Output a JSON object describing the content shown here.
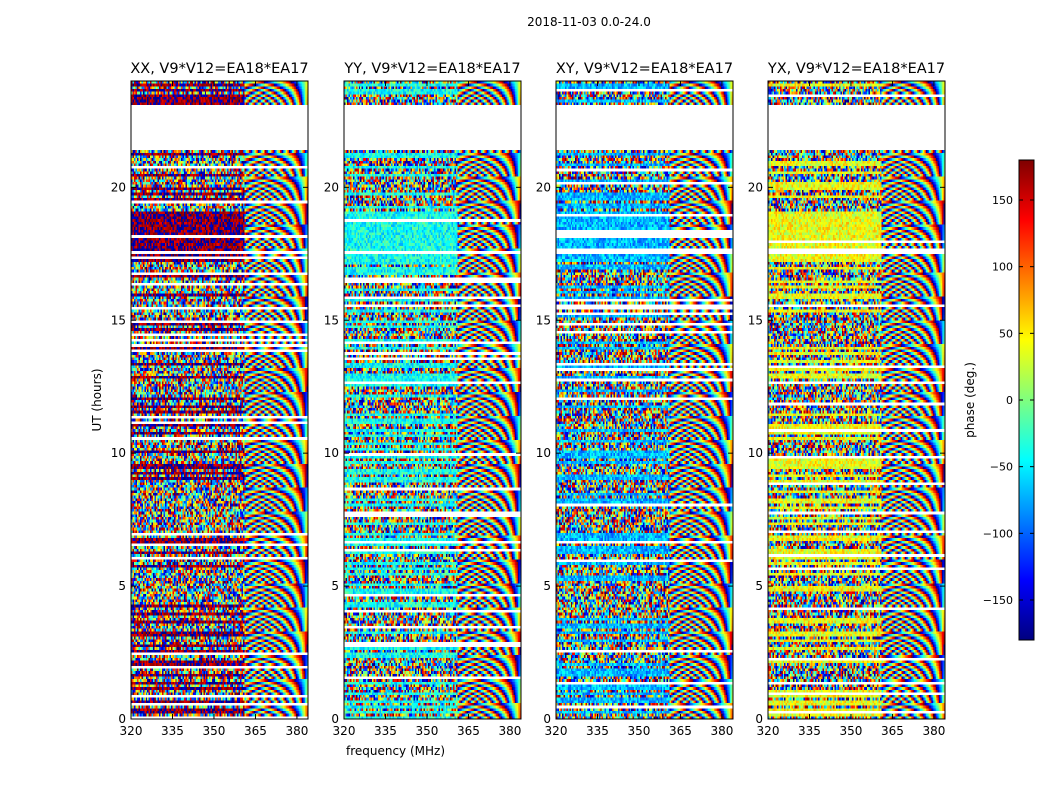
{
  "suptitle": "2018-11-03 0.0-24.0",
  "colors": {
    "colormap": [
      "#00007f",
      "#0000ff",
      "#007fff",
      "#00ffff",
      "#7fff7f",
      "#ffff00",
      "#ff7f00",
      "#ff0000",
      "#7f0000"
    ]
  },
  "chart_data": [
    {
      "type": "heatmap",
      "title": "XX, V9*V12=EA18*EA17",
      "xlabel": "",
      "ylabel": "UT (hours)",
      "x_ticks": [
        "320",
        "335",
        "350",
        "365",
        "380"
      ],
      "y_ticks": [
        "0",
        "5",
        "10",
        "15",
        "20"
      ],
      "xlim": [
        320,
        384
      ],
      "ylim": [
        0,
        24
      ],
      "value_range": [
        -180,
        180
      ],
      "dominant_phase": 175
    },
    {
      "type": "heatmap",
      "title": "YY, V9*V12=EA18*EA17",
      "xlabel": "frequency (MHz)",
      "ylabel": "",
      "x_ticks": [
        "320",
        "335",
        "350",
        "365",
        "380"
      ],
      "y_ticks": [
        "0",
        "5",
        "10",
        "15",
        "20"
      ],
      "xlim": [
        320,
        384
      ],
      "ylim": [
        0,
        24
      ],
      "value_range": [
        -180,
        180
      ],
      "dominant_phase": -40
    },
    {
      "type": "heatmap",
      "title": "XY, V9*V12=EA18*EA17",
      "xlabel": "",
      "ylabel": "",
      "x_ticks": [
        "320",
        "335",
        "350",
        "365",
        "380"
      ],
      "y_ticks": [
        "0",
        "5",
        "10",
        "15",
        "20"
      ],
      "xlim": [
        320,
        384
      ],
      "ylim": [
        0,
        24
      ],
      "value_range": [
        -180,
        180
      ],
      "dominant_phase": -70
    },
    {
      "type": "heatmap",
      "title": "YX, V9*V12=EA18*EA17",
      "xlabel": "",
      "ylabel": "",
      "x_ticks": [
        "320",
        "335",
        "350",
        "365",
        "380"
      ],
      "y_ticks": [
        "0",
        "5",
        "10",
        "15",
        "20"
      ],
      "xlim": [
        320,
        384
      ],
      "ylim": [
        0,
        24
      ],
      "value_range": [
        -180,
        180
      ],
      "dominant_phase": 40
    }
  ],
  "colorbar": {
    "label": "phase (deg.)",
    "ticks": [
      "150",
      "100",
      "50",
      "0",
      "−50",
      "−100",
      "−150"
    ],
    "tick_values": [
      150,
      100,
      50,
      0,
      -50,
      -100,
      -150
    ],
    "range": [
      -180,
      180
    ]
  }
}
